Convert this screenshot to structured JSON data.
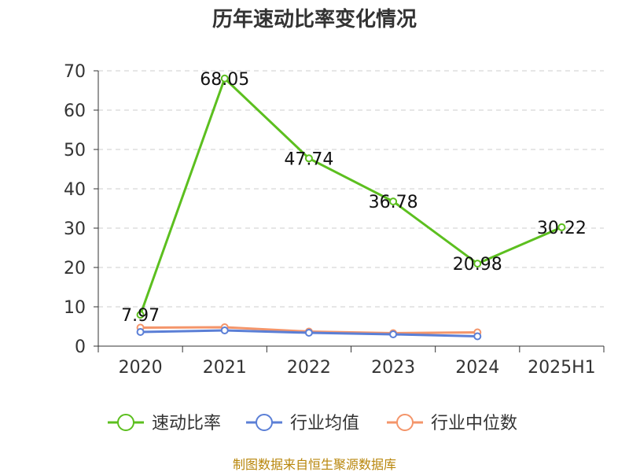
{
  "chart_data": {
    "type": "line",
    "title": "历年速动比率变化情况",
    "categories": [
      "2020",
      "2021",
      "2022",
      "2023",
      "2024",
      "2025H1"
    ],
    "ylim": [
      0,
      70
    ],
    "yticks": [
      0,
      10,
      20,
      30,
      40,
      50,
      60,
      70
    ],
    "grid": true,
    "legend_position": "bottom",
    "series": [
      {
        "name": "速动比率",
        "color": "#5cbf1f",
        "show_labels": true,
        "values": [
          7.97,
          68.05,
          47.74,
          36.78,
          20.98,
          30.22
        ]
      },
      {
        "name": "行业均值",
        "color": "#5b7fd6",
        "show_labels": false,
        "values": [
          3.6,
          4.0,
          3.4,
          3.0,
          2.5,
          null
        ]
      },
      {
        "name": "行业中位数",
        "color": "#f4956a",
        "show_labels": false,
        "values": [
          4.7,
          4.8,
          3.7,
          3.3,
          3.5,
          null
        ]
      }
    ]
  },
  "footer": {
    "source": "制图数据来自恒生聚源数据库"
  }
}
